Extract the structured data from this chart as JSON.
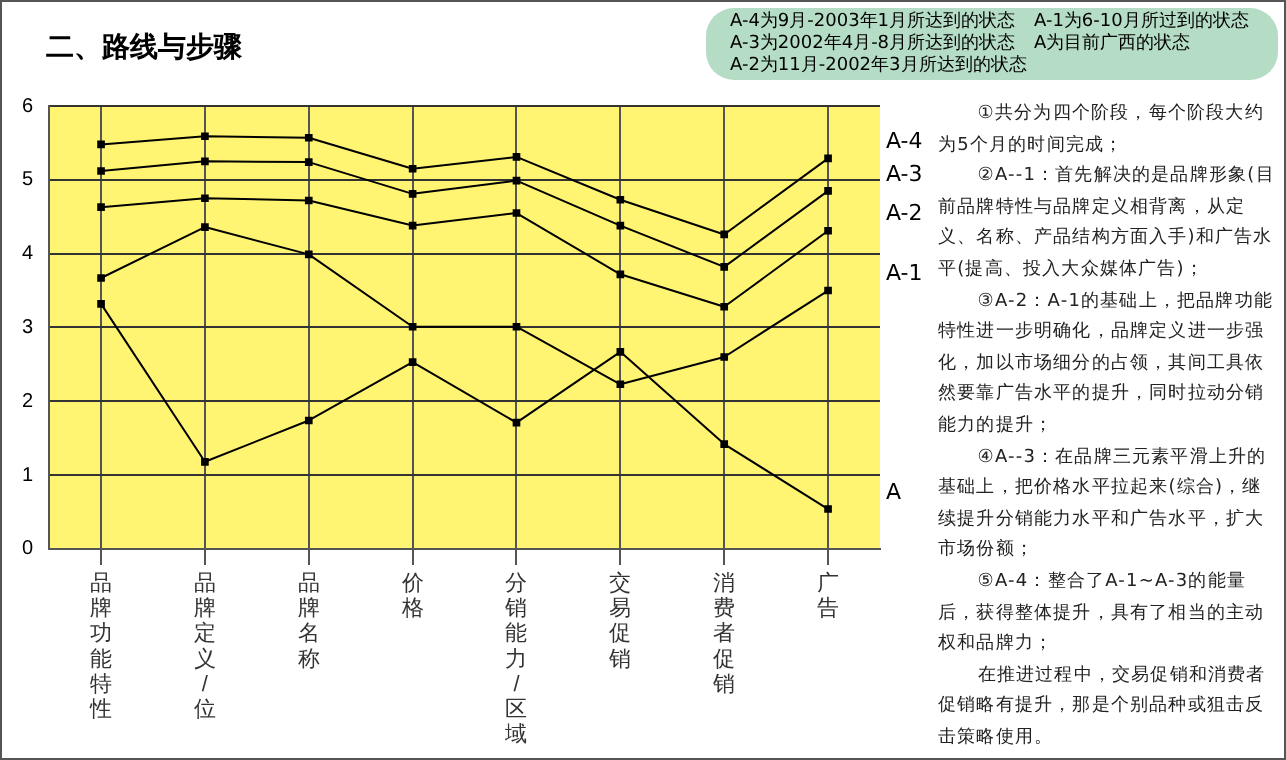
{
  "chart_data": {
    "type": "line",
    "title": "二、路线与步骤",
    "categories": [
      "品牌功能特性",
      "品牌定义/位",
      "品牌名称",
      "价格",
      "分销能力/区域",
      "交易促销",
      "消费者促销",
      "广告"
    ],
    "series": [
      {
        "name": "A-4",
        "color": "#000000",
        "values": [
          5.48,
          5.59,
          5.57,
          5.15,
          5.31,
          4.73,
          4.26,
          5.29
        ]
      },
      {
        "name": "A-3",
        "color": "#000000",
        "values": [
          5.12,
          5.25,
          5.24,
          4.81,
          4.99,
          4.38,
          3.82,
          4.85
        ]
      },
      {
        "name": "A-2",
        "color": "#000000",
        "values": [
          4.63,
          4.75,
          4.72,
          4.38,
          4.55,
          3.72,
          3.28,
          4.31
        ]
      },
      {
        "name": "A-1",
        "color": "#000000",
        "values": [
          3.67,
          4.36,
          3.99,
          3.01,
          3.01,
          2.23,
          2.6,
          3.5
        ]
      },
      {
        "name": "A",
        "color": "#000000",
        "values": [
          3.32,
          1.18,
          1.74,
          2.53,
          1.71,
          2.67,
          1.42,
          0.54
        ]
      }
    ],
    "ylim": [
      0,
      6
    ],
    "yticks": [
      0,
      1,
      2,
      3,
      4,
      5,
      6
    ],
    "grid": true,
    "legend": false,
    "marker": "square",
    "line_style": "solid",
    "annotations": [
      "A-4为9月-2003年1月所达到的状态",
      "A-3为2002年4月-8月所达到的状态",
      "A-2为11月-2002年3月所达到的状态",
      "A-1为6-10月所过到的状态",
      "A为目前广西的状态",
      "①共分为四个阶段，每个阶段大约为5个月的时间完成；",
      "②A--1：首先解决的是品牌形象(目前品牌特性与品牌定义相背离，从定义、名称、产品结构方面入手)和广告水平(提高、投入大众媒体广告)；",
      "③A-2：A-1的基础上，把品牌功能特性进一步明确化，品牌定义进一步强化，加以市场细分的占领，其间工具依然要靠广告水平的提升，同时拉动分销能力的提升；",
      "④A--3：在品牌三元素平滑上升的基础上，把价格水平拉起来(综合)，继续提升分销能力水平和广告水平，扩大市场份额；",
      "⑤A-4：整合了A-1~A-3的能量后，获得整体提升，具有了相当的主动权和品牌力；",
      "在推进过程中，交易促销和消费者促销略有提升，那是个别品种或狙击反击策略使用。"
    ]
  }
}
